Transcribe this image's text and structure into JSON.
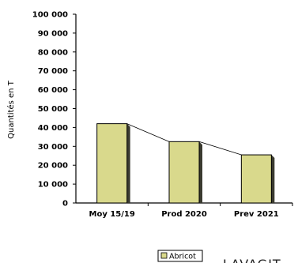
{
  "chart_data": {
    "type": "bar",
    "title": "",
    "xlabel": "",
    "ylabel": "Quantités en T",
    "ylim": [
      0,
      100000
    ],
    "yticks": [
      0,
      10000,
      20000,
      30000,
      40000,
      50000,
      60000,
      70000,
      80000,
      90000,
      100000
    ],
    "ytick_labels": [
      "0",
      "10 000",
      "20 000",
      "30 000",
      "40 000",
      "50 000",
      "60 000",
      "70 000",
      "80 000",
      "90 000",
      "100 000"
    ],
    "categories": [
      "Moy 15/19",
      "Prod 2020",
      "Prev 2021"
    ],
    "series": [
      {
        "name": "Abricot",
        "values": [
          42000,
          32500,
          25500
        ]
      }
    ],
    "trend_line": true,
    "grid": false,
    "legend_position": "bottom",
    "colors": {
      "bar_fill": "#d9d98c",
      "bar_side": "#3a3a30",
      "axis": "#000000"
    }
  },
  "corner_text": "LAVAGIT"
}
